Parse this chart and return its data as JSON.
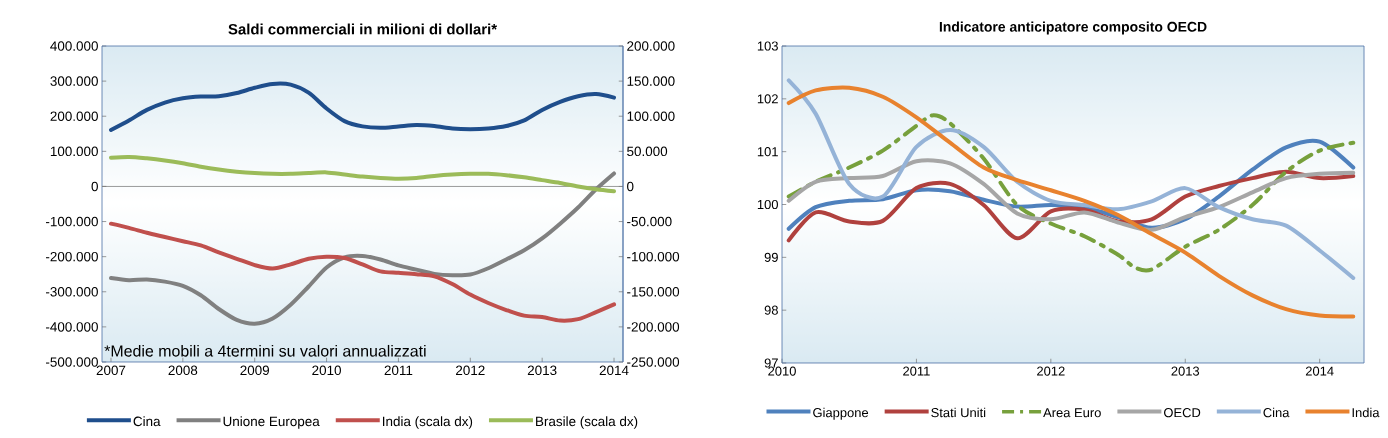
{
  "chart_data": [
    {
      "type": "line",
      "title": "Saldi commerciali in milioni di dollari*",
      "x": [
        2007,
        2007.25,
        2007.5,
        2007.75,
        2008,
        2008.25,
        2008.5,
        2008.75,
        2009,
        2009.25,
        2009.5,
        2009.75,
        2010,
        2010.25,
        2010.5,
        2010.75,
        2011,
        2011.25,
        2011.5,
        2011.75,
        2012,
        2012.25,
        2012.5,
        2012.75,
        2013,
        2013.25,
        2013.5,
        2013.75,
        2014
      ],
      "series": [
        {
          "name": "Cina",
          "color": "#1f4e8c",
          "values": [
            161000,
            188000,
            218000,
            239000,
            251000,
            256000,
            257000,
            266000,
            281000,
            292000,
            290000,
            267000,
            222000,
            186000,
            171000,
            167000,
            171000,
            175000,
            172000,
            165000,
            163000,
            165000,
            172000,
            188000,
            218000,
            241000,
            257000,
            263000,
            253000
          ]
        },
        {
          "name": "Unione Europea",
          "color": "#808080",
          "values": [
            -261000,
            -267000,
            -265000,
            -271000,
            -283000,
            -310000,
            -349000,
            -380000,
            -391000,
            -376000,
            -337000,
            -285000,
            -231000,
            -202000,
            -198000,
            -208000,
            -225000,
            -237000,
            -249000,
            -253000,
            -251000,
            -233000,
            -208000,
            -182000,
            -148000,
            -106000,
            -60000,
            -8000,
            37000
          ]
        },
        {
          "name": "India (scala dx)",
          "color": "#c0504d",
          "axis": "y2",
          "values": [
            -53000,
            -59000,
            -66000,
            -72000,
            -78000,
            -84000,
            -94000,
            -103000,
            -112000,
            -117000,
            -111000,
            -103000,
            -100000,
            -102000,
            -111000,
            -121000,
            -123000,
            -125000,
            -128000,
            -139000,
            -154000,
            -166000,
            -176000,
            -184000,
            -186000,
            -191000,
            -189000,
            -179000,
            -168000
          ]
        },
        {
          "name": "Brasile (scala dx)",
          "color": "#9bbb59",
          "axis": "y2",
          "values": [
            41000,
            42000,
            40000,
            37000,
            33000,
            28000,
            24000,
            21000,
            19000,
            18000,
            18000,
            19000,
            20000,
            17000,
            14000,
            12000,
            11000,
            12000,
            15000,
            17000,
            18000,
            18000,
            16000,
            13000,
            9000,
            5000,
            0,
            -4000,
            -7000
          ]
        }
      ],
      "xlim": [
        2006.875,
        2014.125
      ],
      "xticks": [
        2007,
        2008,
        2009,
        2010,
        2011,
        2012,
        2013,
        2014
      ],
      "ylim": [
        -500000,
        400000
      ],
      "yticks": [
        {
          "value": -500000,
          "label": "-500.000"
        },
        {
          "value": -400000,
          "label": "-400.000"
        },
        {
          "value": -300000,
          "label": "-300.000"
        },
        {
          "value": -200000,
          "label": "-200.000"
        },
        {
          "value": -100000,
          "label": "-100.000"
        },
        0,
        {
          "value": 100000,
          "label": "100.000"
        },
        {
          "value": 200000,
          "label": "200.000"
        },
        {
          "value": 300000,
          "label": "300.000"
        },
        {
          "value": 400000,
          "label": "400.000"
        }
      ],
      "y2lim": [
        -250000,
        200000
      ],
      "y2ticks": [
        {
          "value": -250000,
          "label": "-250.000"
        },
        {
          "value": -200000,
          "label": "-200.000"
        },
        {
          "value": -150000,
          "label": "-150.000"
        },
        {
          "value": -100000,
          "label": "-100.000"
        },
        {
          "value": -50000,
          "label": "-50.000"
        },
        0,
        {
          "value": 50000,
          "label": "50.000"
        },
        {
          "value": 100000,
          "label": "100.000"
        },
        {
          "value": 150000,
          "label": "150.000"
        },
        {
          "value": 200000,
          "label": "200.000"
        }
      ],
      "annotations": [
        "*Medie mobili a 4termini su valori annualizzati"
      ],
      "legend": "bottom"
    },
    {
      "type": "line",
      "title": "Indicatore anticipatore composito OECD",
      "x": [
        2010.05,
        2010.25,
        2010.5,
        2010.75,
        2011,
        2011.25,
        2011.5,
        2011.75,
        2012,
        2012.25,
        2012.5,
        2012.75,
        2013,
        2013.25,
        2013.5,
        2013.75,
        2014,
        2014.25
      ],
      "series": [
        {
          "name": "Giappone",
          "color": "#4f81bd",
          "values": [
            99.54,
            99.95,
            100.07,
            100.1,
            100.27,
            100.25,
            100.09,
            99.96,
            99.99,
            99.95,
            99.76,
            99.56,
            99.72,
            100.15,
            100.66,
            101.08,
            101.19,
            100.7
          ]
        },
        {
          "name": "Stati Uniti",
          "color": "#b0413e",
          "values": [
            99.32,
            99.85,
            99.68,
            99.69,
            100.31,
            100.39,
            99.99,
            99.36,
            99.87,
            99.9,
            99.68,
            99.72,
            100.15,
            100.35,
            100.5,
            100.62,
            100.5,
            100.54
          ]
        },
        {
          "name": "Area Euro",
          "color": "#77a03c",
          "line_style": "dashed",
          "x": [
            2010.05,
            2010.25,
            2010.5,
            2010.75,
            2011,
            2011.125,
            2011.25,
            2011.5,
            2011.75,
            2012,
            2012.25,
            2012.5,
            2012.625,
            2012.75,
            2013,
            2013.25,
            2013.5,
            2013.75,
            2014,
            2014.25
          ],
          "values": [
            100.15,
            100.43,
            100.7,
            101.02,
            101.49,
            101.69,
            101.54,
            100.87,
            99.99,
            99.64,
            99.4,
            99.05,
            98.81,
            98.77,
            99.2,
            99.52,
            99.99,
            100.62,
            101.02,
            101.17
          ]
        },
        {
          "name": "OECD",
          "color": "#a6a6a6",
          "values": [
            100.07,
            100.43,
            100.5,
            100.54,
            100.82,
            100.78,
            100.39,
            99.83,
            99.72,
            99.85,
            99.66,
            99.52,
            99.76,
            99.95,
            100.23,
            100.5,
            100.58,
            100.6
          ]
        },
        {
          "name": "Cina",
          "color": "#95b3d7",
          "values": [
            102.35,
            101.72,
            100.39,
            100.15,
            101.09,
            101.41,
            101.09,
            100.43,
            100.07,
            99.99,
            99.91,
            100.06,
            100.31,
            99.95,
            99.72,
            99.6,
            99.13,
            98.61
          ]
        },
        {
          "name": "India",
          "color": "#e8822e",
          "values": [
            101.92,
            102.16,
            102.21,
            102.04,
            101.65,
            101.17,
            100.7,
            100.46,
            100.27,
            100.07,
            99.8,
            99.44,
            99.09,
            98.65,
            98.28,
            98.02,
            97.9,
            97.88
          ]
        }
      ],
      "xlim": [
        2010,
        2014.33
      ],
      "xticks": [
        2010,
        2011,
        2012,
        2013,
        2014
      ],
      "ylim": [
        97,
        103
      ],
      "yticks": [
        97,
        98,
        99,
        100,
        101,
        102,
        103
      ],
      "legend": "bottom"
    }
  ]
}
